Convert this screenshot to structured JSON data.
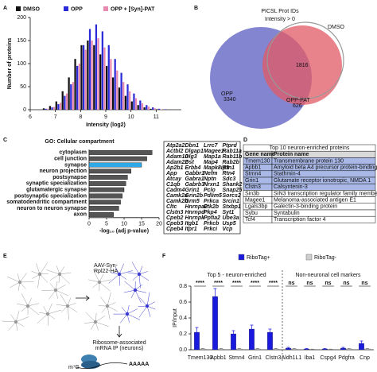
{
  "panel_labels": [
    "A",
    "B",
    "C",
    "D",
    "E",
    "F"
  ],
  "chart_data": [
    {
      "type": "histogram",
      "xlabel": "Intensity (log2)",
      "ylabel": "Number of proteins",
      "bins": [
        6.5,
        6.75,
        7,
        7.25,
        7.5,
        7.75,
        8,
        8.25,
        8.5,
        8.75,
        9,
        9.25,
        9.5,
        9.75,
        10,
        10.25,
        10.5,
        10.75,
        11,
        11.25,
        11.5
      ],
      "series": [
        {
          "name": "DMSO",
          "color": "#111111",
          "values": [
            3,
            8,
            18,
            40,
            70,
            110,
            140,
            150,
            140,
            120,
            95,
            70,
            48,
            30,
            18,
            10,
            5,
            2,
            1,
            0
          ]
        },
        {
          "name": "OPP",
          "color": "#2b2bd9",
          "values": [
            2,
            5,
            12,
            30,
            55,
            95,
            140,
            175,
            185,
            170,
            140,
            110,
            80,
            55,
            35,
            20,
            10,
            5,
            2,
            1
          ]
        },
        {
          "name": "OPP + [Syn]-PAT",
          "color": "#e88ab0",
          "values": [
            2,
            6,
            15,
            35,
            60,
            100,
            130,
            150,
            155,
            135,
            110,
            85,
            60,
            40,
            25,
            14,
            7,
            3,
            1,
            0
          ]
        }
      ],
      "xlim": [
        6,
        12
      ],
      "xticks": [
        6,
        7,
        8,
        9,
        10,
        11
      ],
      "ylim": [
        0,
        200
      ],
      "yticks": [
        0,
        50,
        100,
        150,
        200
      ]
    },
    {
      "type": "barh",
      "title": "GO: Cellular compartment",
      "xlabel": "-log₁₀ (adj p-value)",
      "categories": [
        "cytoplasm",
        "cell junction",
        "synapse",
        "neuron projection",
        "postsynapse",
        "synaptic specialization",
        "glutamatergic synapse",
        "postsynaptic specialization",
        "somatodendritic compartment",
        "neuron to neuron synapse",
        "axon"
      ],
      "values": [
        18,
        16.5,
        15,
        12,
        11,
        10.5,
        10,
        9.5,
        9,
        8.5,
        7
      ],
      "colors": [
        "#555555",
        "#555555",
        "#2fa8e8",
        "#555555",
        "#555555",
        "#555555",
        "#555555",
        "#555555",
        "#555555",
        "#555555",
        "#555555"
      ],
      "xlim": [
        0,
        20
      ],
      "xticks": [
        0,
        5,
        10,
        15,
        20
      ]
    },
    {
      "type": "bar",
      "ylabel": "IP/input",
      "group_titles": [
        "Top 5 - neuron-enriched",
        "Non-neuronal cell markers"
      ],
      "categories": [
        "Tmem130",
        "Apbb1",
        "Stmn4",
        "Grin1",
        "Clstn3",
        "Aldh1L1",
        "Iba1",
        "Cspg4",
        "Pdgfra",
        "Cnp"
      ],
      "significance": [
        "****",
        "****",
        "****",
        "****",
        "****",
        "ns",
        "ns",
        "ns",
        "ns",
        "ns"
      ],
      "series": [
        {
          "name": "RiboTag+",
          "color": "#1a1adf",
          "values": [
            0.22,
            0.67,
            0.2,
            0.26,
            0.22,
            0.02,
            0.01,
            0.01,
            0.02,
            0.08
          ],
          "errors": [
            0.06,
            0.1,
            0.04,
            0.05,
            0.04,
            0.01,
            0.005,
            0.005,
            0.01,
            0.03
          ]
        },
        {
          "name": "RiboTag-",
          "color": "#cfcfcf",
          "values": [
            0.01,
            0.01,
            0.01,
            0.01,
            0.01,
            0.01,
            0.005,
            0.005,
            0.01,
            0.01
          ],
          "errors": [
            0.005,
            0.005,
            0.005,
            0.005,
            0.005,
            0.005,
            0.003,
            0.003,
            0.005,
            0.005
          ]
        }
      ],
      "ylim": [
        0,
        0.8
      ],
      "yticks": [
        {
          "value": 0,
          "label": "0.0"
        },
        0.2,
        0.4,
        0.6,
        0.8
      ]
    }
  ],
  "venn": {
    "title": "PICSL Prot IDs",
    "subtitle": "Intensity > 0",
    "sets": [
      {
        "name": "DMSO"
      },
      {
        "name": "OPP",
        "count": 3340
      },
      {
        "name": "OPP-PAT",
        "count": 626
      }
    ],
    "center_count": 1816
  },
  "gene_list": [
    [
      "Atp2a2",
      "Actbl2",
      "Adam10",
      "Adam22",
      "Ap2b1",
      "App",
      "Atcay",
      "C1qb",
      "Cadm4",
      "Camk2a",
      "Camk2b",
      "Cltc",
      "Clstn3",
      "Cpeb2",
      "Cpeb3",
      "Cpeb4"
    ],
    [
      "Dbn1",
      "Dlgap1",
      "Dlg3",
      "Dst",
      "Erbb4",
      "Gabbr1",
      "Gabra1",
      "Gabrb3",
      "Grin1",
      "Grin2b",
      "Grm5",
      "Hnrnpa2",
      "Hnrnpd",
      "Hnrnpk",
      "Itgb1",
      "Itpr1"
    ],
    [
      "Lrrc7",
      "Magee1",
      "Map1a",
      "Map4",
      "Mapk8ip3",
      "Nefm",
      "Nptn",
      "Nrxn1",
      "Pclo",
      "Pdlim5",
      "Prkca",
      "Ptk2b",
      "Pkp4",
      "Ppfia2",
      "Prkcb",
      "Prkci"
    ],
    [
      "Ptprd",
      "Rab11a",
      "Rab11b",
      "Rab2b",
      "Rtn1",
      "Rtn4",
      "Sdc3",
      "Shank2",
      "Snap25",
      "Sorcs2",
      "Srcin1",
      "Stxbp1",
      "Syt1",
      "Ube3a",
      "Usp5",
      "Vcp"
    ]
  ],
  "table": {
    "title": "Top 10 neuron-enriched proteins",
    "header": [
      "Gene name",
      "Protein name"
    ],
    "rows": [
      [
        "Tmem130",
        "Transmembrane protein 130"
      ],
      [
        "Apbb1",
        "Amyloid beta A4 precursor protein-binding family B member 1"
      ],
      [
        "Stmn4",
        "Stathmin-4"
      ],
      [
        "Grin1",
        "Glutamate receptor ionotropic, NMDA 1"
      ],
      [
        "Clstn3",
        "Calsyntenin-3"
      ],
      [
        "Sin3b",
        "SIN3 transcription regulator family member B"
      ],
      [
        "Magee1",
        "Melanoma-associated antigen E1"
      ],
      [
        "Lgals3bp",
        "Galectin-3-binding protein"
      ],
      [
        "Sybu",
        "Syntabulin"
      ],
      [
        "Tcf4",
        "Transcription factor 4"
      ]
    ],
    "highlight_rows": 5
  },
  "schematic": {
    "vector": [
      "AAV-Syn-",
      "Rpl22-HA"
    ],
    "step": [
      "Ribosome-associated",
      "mRNA IP (neurons)"
    ],
    "polya": "AAAAA",
    "cap": "m⁷G"
  }
}
